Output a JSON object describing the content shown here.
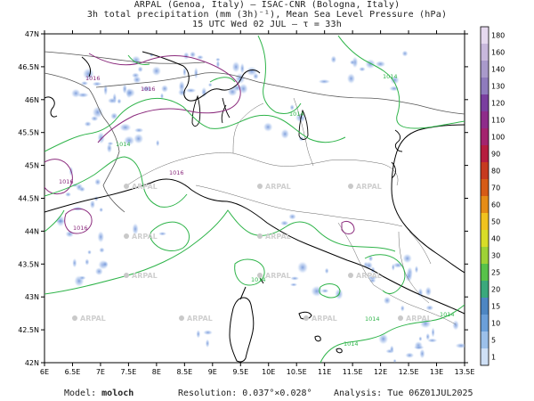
{
  "header": {
    "line1": "ARPAL (Genoa, Italy)  —  ISAC-CNR (Bologna, Italy)",
    "line2": "3h total precipitation (mm (3h)⁻¹), Mean Sea Level Pressure (hPa)",
    "line3": "15 UTC Wed 02 JUL  –  τ = 33h"
  },
  "axes": {
    "lat_labels": [
      "47N",
      "46.5N",
      "46N",
      "45.5N",
      "45N",
      "44.5N",
      "44N",
      "43.5N",
      "43N",
      "42.5N",
      "42N"
    ],
    "lon_labels": [
      "6E",
      "6.5E",
      "7E",
      "7.5E",
      "8E",
      "8.5E",
      "9E",
      "9.5E",
      "10E",
      "10.5E",
      "11E",
      "11.5E",
      "12E",
      "12.5E",
      "13E",
      "13.5E"
    ]
  },
  "isobar_labels": [
    "1016",
    "1016",
    "1016",
    "1016",
    "1014",
    "1014",
    "1014",
    "1016",
    "1014",
    "1014",
    "1014",
    "1014"
  ],
  "watermark": "ARPAL",
  "colorbar": {
    "labels": [
      "180",
      "160",
      "140",
      "130",
      "120",
      "110",
      "100",
      "90",
      "80",
      "70",
      "60",
      "50",
      "40",
      "30",
      "25",
      "20",
      "15",
      "10",
      "5",
      "1"
    ],
    "colors": [
      "#e6d9ef",
      "#c8b8dc",
      "#a99acb",
      "#8f7bbd",
      "#7a3f9f",
      "#8e2c8a",
      "#a3236e",
      "#b61c3f",
      "#c63a1f",
      "#d65b16",
      "#e58c16",
      "#f0c21f",
      "#d8dd28",
      "#9ed236",
      "#58c24a",
      "#3aa87c",
      "#4d86c2",
      "#6b9fd9",
      "#9cc0ea",
      "#cfe0f6"
    ]
  },
  "footer": {
    "model_label": "Model:",
    "model_value": "moloch",
    "resolution_label": "Resolution:",
    "resolution_value": "0.037°×0.028°",
    "analysis_label": "Analysis:",
    "analysis_value": "Tue 06Z01JUL2025"
  }
}
